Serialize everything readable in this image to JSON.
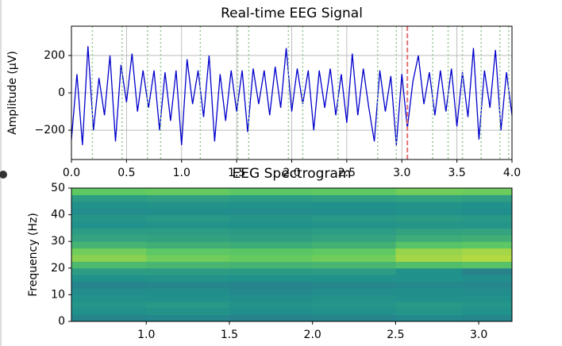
{
  "chart_data": [
    {
      "type": "line",
      "title": "Real-time EEG Signal",
      "y_label": "Amplitude (μV)",
      "x": [
        0,
        0.05,
        0.1,
        0.15,
        0.2,
        0.25,
        0.3,
        0.35,
        0.4,
        0.45,
        0.5,
        0.55,
        0.6,
        0.65,
        0.7,
        0.75,
        0.8,
        0.85,
        0.9,
        0.95,
        1.0,
        1.05,
        1.1,
        1.15,
        1.2,
        1.25,
        1.3,
        1.35,
        1.4,
        1.45,
        1.5,
        1.55,
        1.6,
        1.65,
        1.7,
        1.75,
        1.8,
        1.85,
        1.9,
        1.95,
        2.0,
        2.05,
        2.1,
        2.15,
        2.2,
        2.25,
        2.3,
        2.35,
        2.4,
        2.45,
        2.5,
        2.55,
        2.6,
        2.65,
        2.7,
        2.75,
        2.8,
        2.85,
        2.9,
        2.95,
        3.0,
        3.05,
        3.1,
        3.15,
        3.2,
        3.25,
        3.3,
        3.35,
        3.4,
        3.45,
        3.5,
        3.55,
        3.6,
        3.65,
        3.7,
        3.75,
        3.8,
        3.85,
        3.9,
        3.95,
        4.0
      ],
      "series": [
        {
          "color": "#0000cc",
          "values": [
            -250,
            100,
            -280,
            250,
            -200,
            80,
            -120,
            200,
            -260,
            150,
            -50,
            210,
            -100,
            120,
            -80,
            120,
            -200,
            110,
            -150,
            120,
            -280,
            180,
            -60,
            120,
            -130,
            200,
            -260,
            100,
            -150,
            120,
            -100,
            120,
            -210,
            130,
            -60,
            120,
            -120,
            140,
            -80,
            240,
            -100,
            130,
            -60,
            120,
            -200,
            120,
            -80,
            130,
            -120,
            100,
            -160,
            210,
            -120,
            130,
            -80,
            -260,
            120,
            -100,
            90,
            -280,
            100,
            -190,
            60,
            200,
            -60,
            110,
            -120,
            120,
            -100,
            130,
            -180,
            110,
            -130,
            240,
            -250,
            120,
            -80,
            230,
            -200,
            110,
            -120
          ]
        }
      ],
      "event_lines": [
        0.19,
        0.46,
        0.69,
        0.81,
        1.17,
        1.51,
        1.61,
        1.97,
        2.1,
        2.42,
        2.78,
        2.95,
        3.28,
        3.42,
        3.55,
        3.72,
        3.89,
        3.97
      ],
      "event_color": "#8fc98f",
      "cursor_line": 3.05,
      "cursor_color": "#e07070",
      "xlim": [
        0,
        4
      ],
      "ylim": [
        -357,
        357
      ],
      "xticks": [
        {
          "value": 0,
          "label": "0.0"
        },
        {
          "value": 0.5,
          "label": "0.5"
        },
        {
          "value": 1,
          "label": "1.0"
        },
        {
          "value": 1.5,
          "label": "1.5"
        },
        {
          "value": 2,
          "label": "2.0"
        },
        {
          "value": 2.5,
          "label": "2.5"
        },
        {
          "value": 3,
          "label": "3.0"
        },
        {
          "value": 3.5,
          "label": "3.5"
        },
        {
          "value": 4,
          "label": "4.0"
        }
      ],
      "yticks": [
        {
          "value": -200,
          "label": "−200"
        },
        0,
        200
      ],
      "grid": true
    },
    {
      "type": "heatmap",
      "title": "EEG Spectrogram",
      "y_label": "Frequency (Hz)",
      "x_bins": [
        0.55,
        1.0,
        1.5,
        2.0,
        2.5,
        2.9,
        3.2
      ],
      "y_bins": [
        0,
        2.5,
        5,
        7.5,
        10,
        12.5,
        15,
        17.5,
        20,
        22.5,
        25,
        27.5,
        30,
        32.5,
        35,
        37.5,
        40,
        42.5,
        45,
        47.5,
        50
      ],
      "values": [
        [
          0.45,
          0.46,
          0.44,
          0.45,
          0.47,
          0.46
        ],
        [
          0.5,
          0.51,
          0.49,
          0.5,
          0.52,
          0.5
        ],
        [
          0.52,
          0.53,
          0.51,
          0.52,
          0.53,
          0.52
        ],
        [
          0.5,
          0.5,
          0.49,
          0.51,
          0.5,
          0.5
        ],
        [
          0.48,
          0.49,
          0.47,
          0.48,
          0.49,
          0.48
        ],
        [
          0.45,
          0.46,
          0.45,
          0.46,
          0.47,
          0.46
        ],
        [
          0.5,
          0.51,
          0.5,
          0.5,
          0.5,
          0.49
        ],
        [
          0.55,
          0.55,
          0.54,
          0.55,
          0.5,
          0.44
        ],
        [
          0.68,
          0.66,
          0.65,
          0.66,
          0.7,
          0.72
        ],
        [
          0.82,
          0.78,
          0.76,
          0.78,
          0.86,
          0.88
        ],
        [
          0.78,
          0.74,
          0.73,
          0.75,
          0.84,
          0.86
        ],
        [
          0.65,
          0.63,
          0.62,
          0.64,
          0.72,
          0.74
        ],
        [
          0.58,
          0.57,
          0.56,
          0.58,
          0.62,
          0.63
        ],
        [
          0.55,
          0.55,
          0.54,
          0.55,
          0.57,
          0.58
        ],
        [
          0.5,
          0.51,
          0.5,
          0.51,
          0.52,
          0.52
        ],
        [
          0.52,
          0.53,
          0.52,
          0.53,
          0.54,
          0.53
        ],
        [
          0.48,
          0.49,
          0.48,
          0.49,
          0.5,
          0.49
        ],
        [
          0.5,
          0.51,
          0.5,
          0.5,
          0.51,
          0.5
        ],
        [
          0.55,
          0.56,
          0.55,
          0.56,
          0.57,
          0.56
        ],
        [
          0.75,
          0.76,
          0.74,
          0.75,
          0.78,
          0.77
        ]
      ],
      "xlim": [
        0.55,
        3.2
      ],
      "ylim": [
        0,
        50
      ],
      "xticks": [
        {
          "value": 1,
          "label": "1.0"
        },
        {
          "value": 1.5,
          "label": "1.5"
        },
        {
          "value": 2,
          "label": "2.0"
        },
        {
          "value": 2.5,
          "label": "2.5"
        },
        {
          "value": 3,
          "label": "3.0"
        }
      ],
      "yticks": [
        0,
        10,
        20,
        30,
        40,
        50
      ]
    }
  ]
}
